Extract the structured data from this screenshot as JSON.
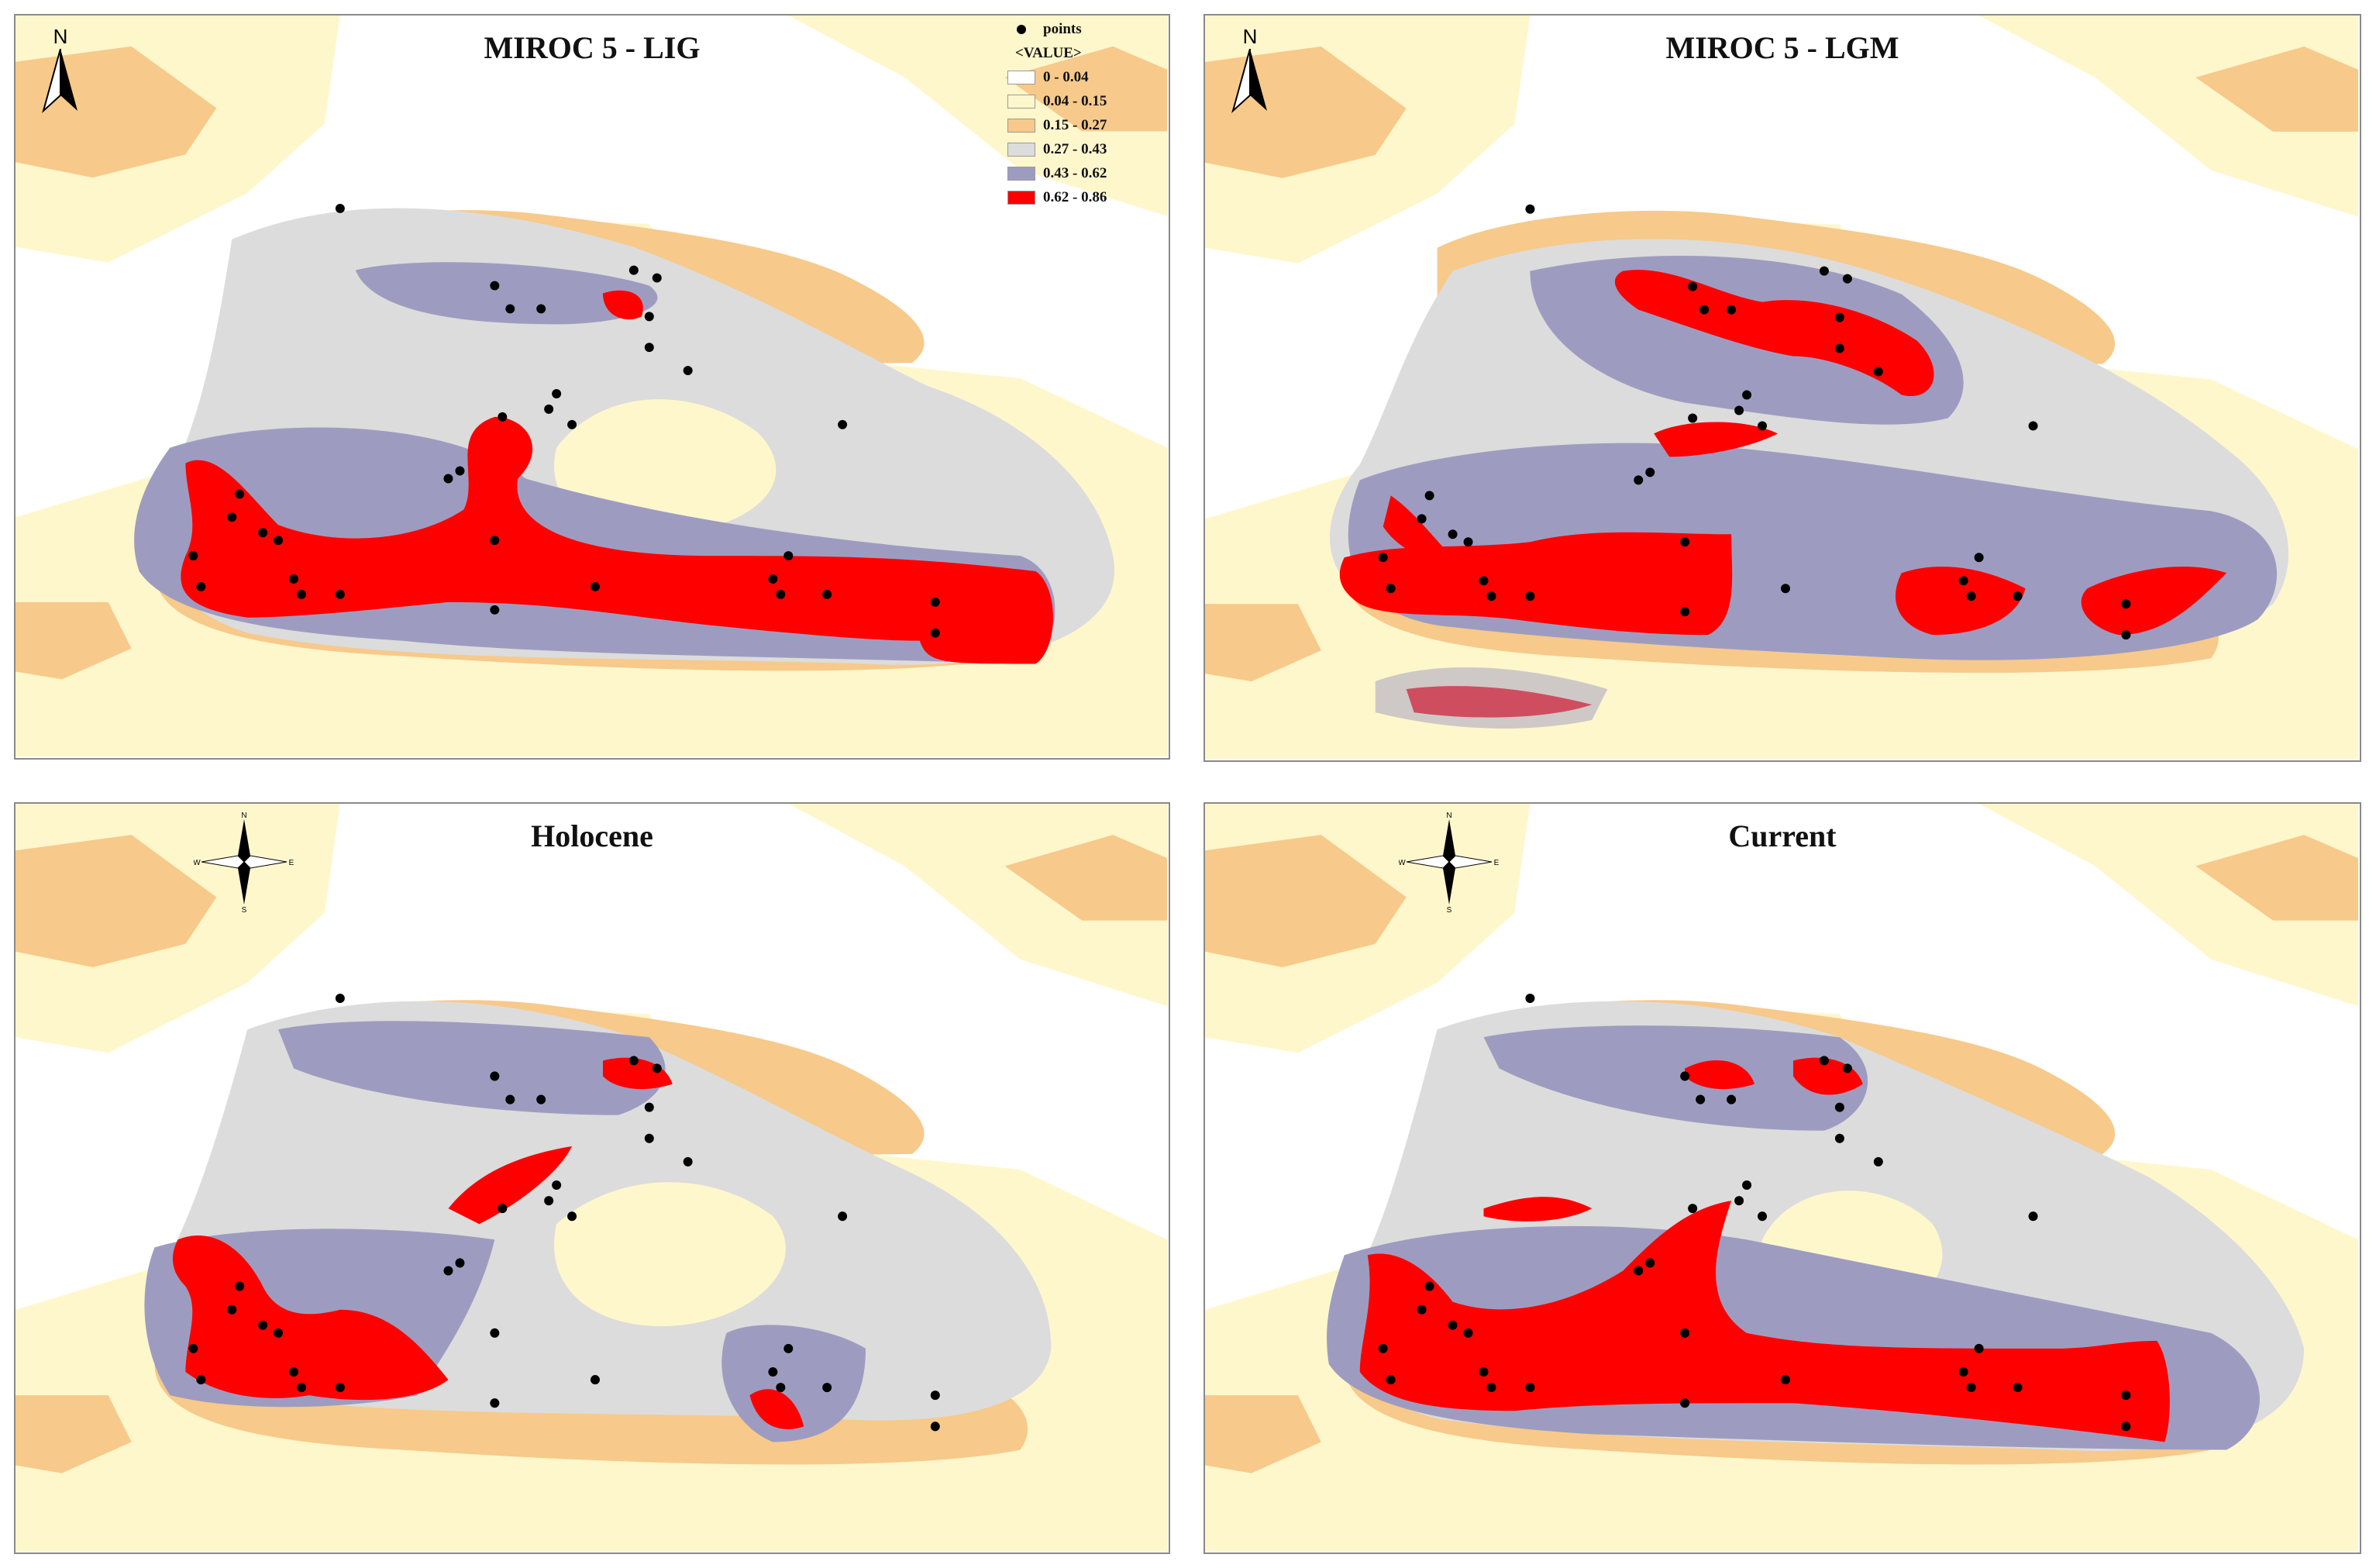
{
  "legend": {
    "points_label": "points",
    "header": "<VALUE>",
    "classes": [
      {
        "range": "0 - 0.04",
        "color": "#ffffff"
      },
      {
        "range": "0.04 - 0.15",
        "color": "#fff7cc"
      },
      {
        "range": "0.15 - 0.27",
        "color": "#f7c98a"
      },
      {
        "range": "0.27 - 0.43",
        "color": "#dcdcdc"
      },
      {
        "range": "0.43 - 0.62",
        "color": "#9d9cc0"
      },
      {
        "range": "0.62 - 0.86",
        "color": "#ff0000"
      }
    ]
  },
  "panels": [
    {
      "id": "lig",
      "title": "MIROC 5 - LIG",
      "arrow": "N",
      "compass": null
    },
    {
      "id": "lgm",
      "title": "MIROC 5 - LGM",
      "arrow": "N",
      "compass": null
    },
    {
      "id": "holocene",
      "title": "Holocene",
      "arrow": null,
      "compass": {
        "n": "N",
        "s": "S",
        "e": "E",
        "w": "W"
      }
    },
    {
      "id": "current",
      "title": "Current",
      "arrow": null,
      "compass": {
        "n": "N",
        "s": "S",
        "e": "E",
        "w": "W"
      }
    }
  ]
}
